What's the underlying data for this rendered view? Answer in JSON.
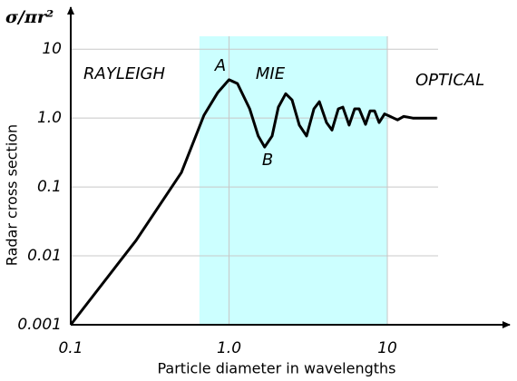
{
  "chart_data": {
    "type": "line",
    "unit_label": "σ/πr²",
    "xlabel": "Particle diameter in wavelengths",
    "ylabel": "Radar cross section",
    "annotations": [
      "RAYLEIGH",
      "A",
      "MIE",
      "OPTICAL",
      "B"
    ],
    "x": [
      0.1,
      0.259,
      0.5,
      0.695,
      0.847,
      1.0,
      1.13,
      1.35,
      1.53,
      1.68,
      1.87,
      2.05,
      2.28,
      2.5,
      2.78,
      3.09,
      3.44,
      3.72,
      4.13,
      4.47,
      4.9,
      5.24,
      5.74,
      6.22,
      6.64,
      7.28,
      7.78,
      8.31,
      8.88,
      9.61,
      10.4,
      11.6,
      12.7,
      14.5,
      20.6
    ],
    "values": [
      0.001,
      0.0168,
      0.162,
      1.1,
      2.33,
      3.6,
      3.17,
      1.36,
      0.55,
      0.38,
      0.55,
      1.44,
      2.26,
      1.83,
      0.79,
      0.55,
      1.36,
      1.73,
      0.86,
      0.67,
      1.36,
      1.44,
      0.79,
      1.36,
      1.36,
      0.81,
      1.27,
      1.27,
      0.86,
      1.15,
      1.06,
      0.94,
      1.06,
      1.0,
      1.0
    ],
    "color": "#000000",
    "shade": {
      "x": [
        0.65,
        10
      ],
      "color": "#ccffff"
    },
    "xscale": "log",
    "yscale": "log",
    "xlim": [
      0.1,
      50
    ],
    "ylim": [
      0.001,
      30
    ],
    "xticks": [
      0.1,
      {
        "value": 1,
        "label": "1.0"
      },
      10
    ],
    "yticks": [
      0.001,
      0.01,
      0.1,
      {
        "value": 1,
        "label": "1.0"
      },
      10
    ],
    "grid": true
  }
}
